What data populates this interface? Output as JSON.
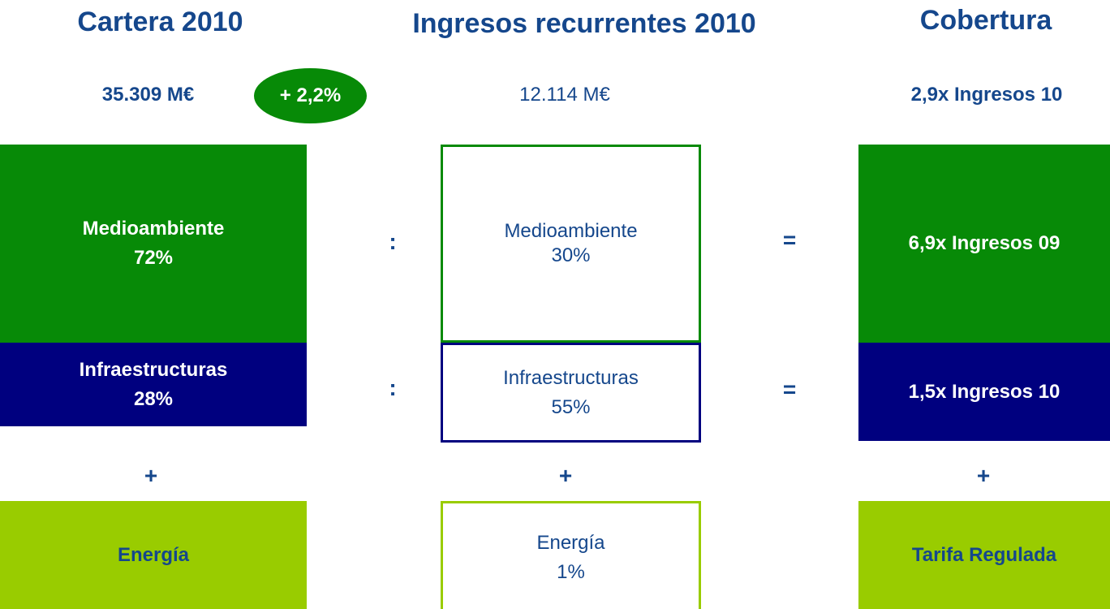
{
  "columns": [
    {
      "title": "Cartera 2010",
      "summary": "35.309 M€",
      "badge": "+ 2,2%",
      "boxes": [
        {
          "label": "Medioambiente",
          "value": "72%"
        },
        {
          "label": "Infraestructuras",
          "value": "28%"
        },
        {
          "label": "Energía"
        }
      ]
    },
    {
      "title": "Ingresos recurrentes 2010",
      "summary": "12.114 M€",
      "boxes": [
        {
          "label": "Medioambiente",
          "value": "30%"
        },
        {
          "label": "Infraestructuras",
          "value": "55%"
        },
        {
          "label": "Energía",
          "value": "1%"
        }
      ]
    },
    {
      "title": "Cobertura",
      "summary": "2,9x Ingresos 10",
      "boxes": [
        {
          "label": "6,9x Ingresos 09"
        },
        {
          "label": "1,5x Ingresos 10"
        },
        {
          "label": "Tarifa Regulada"
        }
      ]
    }
  ],
  "operators": {
    "divide": ":",
    "equals": "=",
    "plus": "+"
  }
}
